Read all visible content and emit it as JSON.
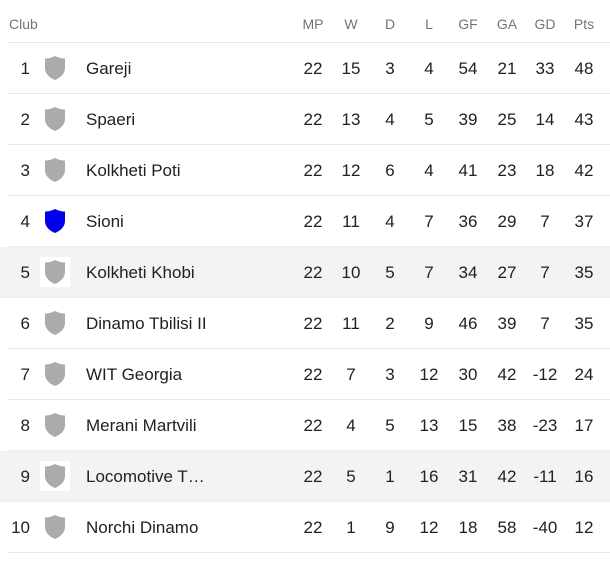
{
  "headers": {
    "club": "Club",
    "mp": "MP",
    "w": "W",
    "d": "D",
    "l": "L",
    "gf": "GF",
    "ga": "GA",
    "gd": "GD",
    "pts": "Pts"
  },
  "colors": {
    "default_crest": "#ababab",
    "sioni_crest": "#0000ee",
    "highlight_row": "#f1f3f4"
  },
  "rows": [
    {
      "pos": "1",
      "club": "Gareji",
      "mp": "22",
      "w": "15",
      "d": "3",
      "l": "4",
      "gf": "54",
      "ga": "21",
      "gd": "33",
      "pts": "48",
      "crest": "#ababab",
      "hl": false
    },
    {
      "pos": "2",
      "club": "Spaeri",
      "mp": "22",
      "w": "13",
      "d": "4",
      "l": "5",
      "gf": "39",
      "ga": "25",
      "gd": "14",
      "pts": "43",
      "crest": "#ababab",
      "hl": false
    },
    {
      "pos": "3",
      "club": "Kolkheti Poti",
      "mp": "22",
      "w": "12",
      "d": "6",
      "l": "4",
      "gf": "41",
      "ga": "23",
      "gd": "18",
      "pts": "42",
      "crest": "#ababab",
      "hl": false
    },
    {
      "pos": "4",
      "club": "Sioni",
      "mp": "22",
      "w": "11",
      "d": "4",
      "l": "7",
      "gf": "36",
      "ga": "29",
      "gd": "7",
      "pts": "37",
      "crest": "#0000ee",
      "hl": false
    },
    {
      "pos": "5",
      "club": "Kolkheti Khobi",
      "mp": "22",
      "w": "10",
      "d": "5",
      "l": "7",
      "gf": "34",
      "ga": "27",
      "gd": "7",
      "pts": "35",
      "crest": "#ababab",
      "hl": true
    },
    {
      "pos": "6",
      "club": "Dinamo Tbilisi II",
      "mp": "22",
      "w": "11",
      "d": "2",
      "l": "9",
      "gf": "46",
      "ga": "39",
      "gd": "7",
      "pts": "35",
      "crest": "#ababab",
      "hl": false
    },
    {
      "pos": "7",
      "club": "WIT Georgia",
      "mp": "22",
      "w": "7",
      "d": "3",
      "l": "12",
      "gf": "30",
      "ga": "42",
      "gd": "-12",
      "pts": "24",
      "crest": "#ababab",
      "hl": false
    },
    {
      "pos": "8",
      "club": "Merani Martvili",
      "mp": "22",
      "w": "4",
      "d": "5",
      "l": "13",
      "gf": "15",
      "ga": "38",
      "gd": "-23",
      "pts": "17",
      "crest": "#ababab",
      "hl": false
    },
    {
      "pos": "9",
      "club": "Locomotive T…",
      "mp": "22",
      "w": "5",
      "d": "1",
      "l": "16",
      "gf": "31",
      "ga": "42",
      "gd": "-11",
      "pts": "16",
      "crest": "#ababab",
      "hl": true
    },
    {
      "pos": "10",
      "club": "Norchi Dinamo",
      "mp": "22",
      "w": "1",
      "d": "9",
      "l": "12",
      "gf": "18",
      "ga": "58",
      "gd": "-40",
      "pts": "12",
      "crest": "#ababab",
      "hl": false
    }
  ]
}
